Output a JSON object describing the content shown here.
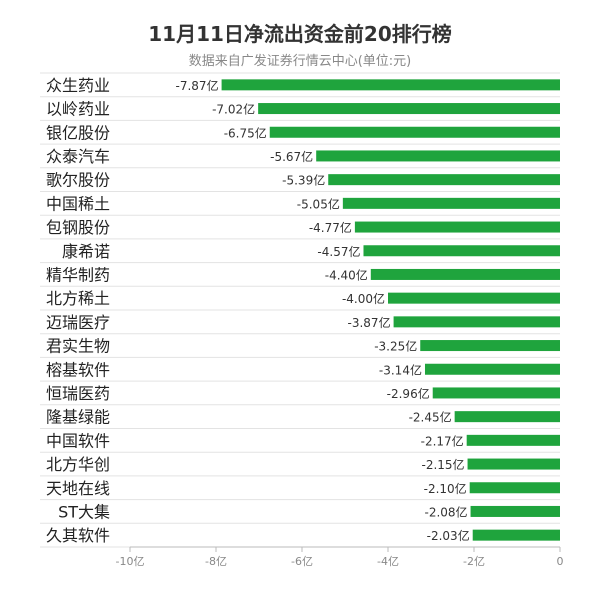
{
  "chart_data": {
    "type": "bar",
    "orientation": "horizontal",
    "title": "11月11日净流出资金前20排行榜",
    "subtitle": "数据来自广发证券行情云中心(单位:元)",
    "categories": [
      "众生药业",
      "以岭药业",
      "银亿股份",
      "众泰汽车",
      "歌尔股份",
      "中国稀土",
      "包钢股份",
      "康希诺",
      "精华制药",
      "北方稀土",
      "迈瑞医疗",
      "君实生物",
      "榕基软件",
      "恒瑞医药",
      "隆基绿能",
      "中国软件",
      "北方华创",
      "天地在线",
      "ST大集",
      "久其软件"
    ],
    "values": [
      -7.87,
      -7.02,
      -6.75,
      -5.67,
      -5.39,
      -5.05,
      -4.77,
      -4.57,
      -4.4,
      -4.0,
      -3.87,
      -3.25,
      -3.14,
      -2.96,
      -2.45,
      -2.17,
      -2.15,
      -2.1,
      -2.08,
      -2.03
    ],
    "labels": [
      "-7.87亿",
      "-7.02亿",
      "-6.75亿",
      "-5.67亿",
      "-5.39亿",
      "-5.05亿",
      "-4.77亿",
      "-4.57亿",
      "-4.40亿",
      "-4.00亿",
      "-3.87亿",
      "-3.25亿",
      "-3.14亿",
      "-2.96亿",
      "-2.45亿",
      "-2.17亿",
      "-2.15亿",
      "-2.10亿",
      "-2.08亿",
      "-2.03亿"
    ],
    "xlim": [
      -10,
      0
    ],
    "xticks": [
      -10,
      -8,
      -6,
      -4,
      -2,
      0
    ],
    "xtick_labels": [
      "-10亿",
      "-8亿",
      "-6亿",
      "-4亿",
      "-2亿",
      "0"
    ],
    "bar_color": "#1fa43d",
    "grid": "horizontal separators"
  }
}
